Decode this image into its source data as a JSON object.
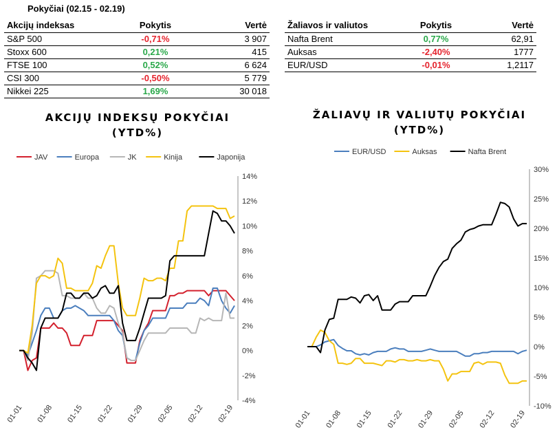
{
  "period": "Pokyčiai (02.15 - 02.19)",
  "indices_table": {
    "headers": [
      "Akcijų indeksas",
      "Pokytis",
      "Vertė"
    ],
    "rows": [
      {
        "name": "S&P 500",
        "change": "-0,71%",
        "value": "3 907",
        "sign": "neg"
      },
      {
        "name": "Stoxx 600",
        "change": "0,21%",
        "value": "415",
        "sign": "pos"
      },
      {
        "name": "FTSE 100",
        "change": "0,52%",
        "value": "6 624",
        "sign": "pos"
      },
      {
        "name": "CSI 300",
        "change": "-0,50%",
        "value": "5 779",
        "sign": "neg"
      },
      {
        "name": "Nikkei 225",
        "change": "1,69%",
        "value": "30 018",
        "sign": "pos"
      }
    ]
  },
  "commodities_table": {
    "headers": [
      "Žaliavos ir valiutos",
      "Pokytis",
      "Vertė"
    ],
    "rows": [
      {
        "name": "Nafta Brent",
        "change": "0,77%",
        "value": "62,91",
        "sign": "pos"
      },
      {
        "name": "Auksas",
        "change": "-2,40%",
        "value": "1777",
        "sign": "neg"
      },
      {
        "name": "EUR/USD",
        "change": "-0,01%",
        "value": "1,2117",
        "sign": "neg"
      }
    ]
  },
  "colors": {
    "positive": "#2aa84a",
    "negative": "#e5232d"
  },
  "chart_data": [
    {
      "type": "line",
      "title": "AKCIJŲ INDEKSŲ POKYČIAI",
      "subtitle": "(YTD%)",
      "x_ticks": [
        "01-01",
        "01-08",
        "01-15",
        "01-22",
        "01-29",
        "02-05",
        "02-12",
        "02-19"
      ],
      "y_ticks": [
        "14%",
        "12%",
        "10%",
        "8%",
        "6%",
        "4%",
        "2%",
        "0%",
        "-2%",
        "-4%"
      ],
      "ylim": [
        -4,
        14
      ],
      "grid": false,
      "legend_position": "top",
      "x": [
        1,
        2,
        3,
        4,
        5,
        6,
        7,
        8,
        9,
        10,
        11,
        12,
        13,
        14,
        15,
        16,
        17,
        18,
        19,
        20,
        21,
        22,
        23,
        24,
        25,
        26,
        27,
        28,
        29,
        30,
        31,
        32,
        33,
        34,
        35,
        36,
        37,
        38,
        39,
        40,
        41,
        42,
        43,
        44,
        45,
        46,
        47,
        48,
        49,
        50,
        51
      ],
      "series": [
        {
          "name": "JAV",
          "color": "#d3202d",
          "values": [
            0,
            0,
            -1.6,
            -0.8,
            -0.6,
            1.8,
            1.8,
            1.8,
            2.2,
            1.8,
            1.8,
            1.4,
            0.4,
            0.4,
            0.4,
            1.2,
            1.2,
            1.2,
            2.4,
            2.4,
            2.4,
            2.4,
            2.4,
            2,
            1.6,
            -1,
            -1,
            -1,
            0.8,
            1.6,
            2.2,
            3.2,
            3.2,
            3.2,
            3.2,
            4.4,
            4.4,
            4.6,
            4.6,
            4.8,
            4.8,
            4.8,
            4.8,
            4.8,
            4.4,
            4.8,
            4.8,
            4.8,
            4.8,
            4.4,
            4
          ]
        },
        {
          "name": "Europa",
          "color": "#4a7ebd",
          "values": [
            0,
            0,
            -0.4,
            0.6,
            1.6,
            2.8,
            3.4,
            3.4,
            2.6,
            2.6,
            3.2,
            3.4,
            3.4,
            3.6,
            3.4,
            3.2,
            2.8,
            2.8,
            2.8,
            2.8,
            2.8,
            2.8,
            2.4,
            1.6,
            1.2,
            -0.6,
            -0.8,
            -0.8,
            0.6,
            1.6,
            2,
            2.6,
            2.6,
            2.6,
            2.6,
            3.4,
            3.4,
            3.4,
            3.4,
            3.8,
            3.8,
            3.8,
            4.2,
            4,
            3.6,
            5,
            5,
            4,
            3.4,
            3,
            3.6
          ]
        },
        {
          "name": "JK",
          "color": "#b6b6b6",
          "values": [
            0,
            0,
            -0.8,
            1.4,
            5.8,
            6,
            6.4,
            6.4,
            6.4,
            6.2,
            4.4,
            4.4,
            4.2,
            4.2,
            4.2,
            4.6,
            4.2,
            4.2,
            3.4,
            3,
            3,
            3.6,
            3.4,
            2.2,
            1.4,
            -0.6,
            -0.8,
            -0.8,
            0,
            0.8,
            1.4,
            1.4,
            1.4,
            1.4,
            1.4,
            1.8,
            1.8,
            1.8,
            1.8,
            1.8,
            1.4,
            1.4,
            2.6,
            2.4,
            2.6,
            2.4,
            2.4,
            2.4,
            4.6,
            2.6,
            2.6
          ]
        },
        {
          "name": "Kinija",
          "color": "#f4c30f",
          "values": [
            0,
            0,
            -0.2,
            2,
            5.4,
            6,
            6,
            5.8,
            6,
            7.4,
            7,
            5,
            5,
            4.8,
            4.8,
            4.8,
            4.8,
            5.4,
            6.8,
            6.6,
            7.6,
            8.4,
            8.4,
            5.4,
            3.4,
            2.8,
            2.8,
            2.8,
            4.2,
            5.8,
            5.6,
            5.6,
            5.8,
            5.8,
            5.6,
            6.6,
            6.6,
            8.8,
            8.8,
            11.2,
            11.6,
            11.6,
            11.6,
            11.6,
            11.6,
            11.6,
            11.4,
            11.4,
            11.4,
            10.6,
            10.8
          ]
        },
        {
          "name": "Japonija",
          "color": "#000000",
          "values": [
            0,
            0,
            -0.6,
            -1,
            -1.6,
            1.8,
            2.6,
            2.6,
            2.6,
            2.6,
            3.2,
            4.6,
            4.6,
            4.2,
            4.2,
            4.6,
            4.6,
            4.2,
            4.4,
            5,
            5.2,
            4.6,
            4.6,
            5.2,
            2.2,
            0.8,
            0.8,
            0.8,
            1.8,
            3,
            4.2,
            4.2,
            4.2,
            4.2,
            4.4,
            7.2,
            7.6,
            7.6,
            7.6,
            7.6,
            7.6,
            7.6,
            7.6,
            7.6,
            9.4,
            11.2,
            11,
            10.4,
            10.4,
            10,
            9.4
          ]
        }
      ]
    },
    {
      "type": "line",
      "title": "ŽALIAVŲ IR VALIUTŲ POKYČIAI",
      "subtitle": "(YTD%)",
      "x_ticks": [
        "01-01",
        "01-08",
        "01-15",
        "01-22",
        "01-29",
        "02-05",
        "02-12",
        "02-19"
      ],
      "y_ticks": [
        "30%",
        "25%",
        "20%",
        "15%",
        "10%",
        "5%",
        "0%",
        "-5%",
        "-10%"
      ],
      "ylim": [
        -10,
        30
      ],
      "grid": false,
      "legend_position": "top",
      "x": [
        1,
        2,
        3,
        4,
        5,
        6,
        7,
        8,
        9,
        10,
        11,
        12,
        13,
        14,
        15,
        16,
        17,
        18,
        19,
        20,
        21,
        22,
        23,
        24,
        25,
        26,
        27,
        28,
        29,
        30,
        31,
        32,
        33,
        34,
        35,
        36,
        37,
        38,
        39,
        40,
        41,
        42,
        43,
        44,
        45,
        46,
        47,
        48,
        49,
        50,
        51
      ],
      "series": [
        {
          "name": "EUR/USD",
          "color": "#4a7ebd",
          "values": [
            0,
            0,
            0,
            0.3,
            0.8,
            1,
            1.2,
            0.2,
            -0.3,
            -0.7,
            -0.7,
            -1.2,
            -1.4,
            -1.2,
            -1.4,
            -1,
            -0.8,
            -0.8,
            -0.8,
            -0.4,
            -0.2,
            -0.4,
            -0.4,
            -0.8,
            -0.8,
            -0.8,
            -0.8,
            -0.6,
            -0.4,
            -0.6,
            -0.8,
            -0.8,
            -0.8,
            -0.8,
            -0.8,
            -1.2,
            -1.6,
            -1.6,
            -1.2,
            -1.2,
            -1,
            -1,
            -0.8,
            -0.8,
            -0.8,
            -0.8,
            -0.8,
            -0.8,
            -1.2,
            -0.8,
            -0.6
          ]
        },
        {
          "name": "Auksas",
          "color": "#f4c30f",
          "values": [
            0,
            0,
            1.6,
            2.8,
            2.4,
            1,
            0.4,
            -2.8,
            -2.8,
            -3,
            -2.8,
            -2,
            -2,
            -2.8,
            -2.8,
            -2.8,
            -3,
            -3.2,
            -2.4,
            -2.4,
            -2.6,
            -2.2,
            -2.2,
            -2.4,
            -2.4,
            -2.2,
            -2.4,
            -2.4,
            -2.2,
            -2.4,
            -2.4,
            -3.8,
            -5.8,
            -4.6,
            -4.6,
            -4.2,
            -4.2,
            -4.2,
            -2.8,
            -2.6,
            -3,
            -2.6,
            -2.6,
            -2.6,
            -2.8,
            -4.8,
            -6.2,
            -6.2,
            -6.2,
            -5.8,
            -5.8
          ]
        },
        {
          "name": "Nafta Brent",
          "color": "#000000",
          "values": [
            0,
            0,
            0,
            -1,
            2.8,
            4.6,
            4.8,
            8,
            8,
            8,
            8.4,
            8.2,
            7.4,
            8.6,
            8.8,
            7.8,
            8.6,
            6.2,
            6.2,
            6.2,
            7.2,
            7.6,
            7.6,
            7.6,
            8.6,
            8.6,
            8.6,
            8.6,
            10.2,
            12,
            13.4,
            14.4,
            14.8,
            16.6,
            17.4,
            18,
            19.4,
            19.8,
            20,
            20.4,
            20.6,
            20.6,
            20.6,
            22.4,
            24.4,
            24.2,
            23.6,
            21.6,
            20.4,
            20.8,
            20.8
          ]
        }
      ]
    }
  ]
}
